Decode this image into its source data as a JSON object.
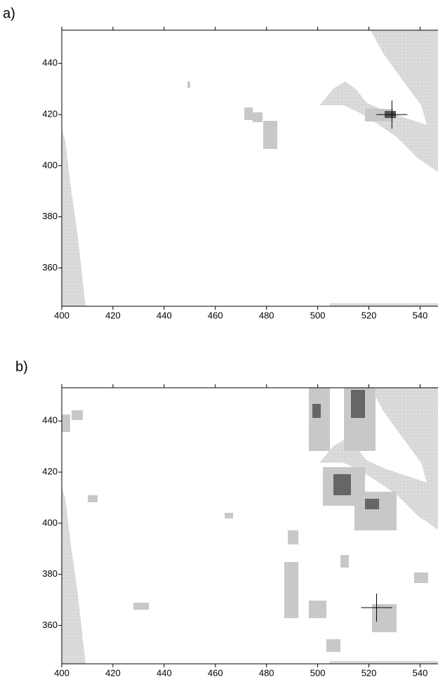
{
  "chart_data": [
    {
      "type": "map",
      "panel_label": "a)",
      "xlim": [
        400,
        547
      ],
      "ylim": [
        345,
        453
      ],
      "xticks": [
        400,
        420,
        440,
        460,
        480,
        500,
        520,
        540
      ],
      "yticks": [
        360,
        380,
        400,
        420,
        440
      ],
      "marker": {
        "x": 529,
        "y": 420
      }
    },
    {
      "type": "map",
      "panel_label": "b)",
      "xlim": [
        400,
        547
      ],
      "ylim": [
        345,
        453
      ],
      "xticks": [
        400,
        420,
        440,
        460,
        480,
        500,
        520,
        540
      ],
      "yticks": [
        360,
        380,
        400,
        420,
        440
      ],
      "marker": {
        "x": 523,
        "y": 367
      }
    }
  ]
}
